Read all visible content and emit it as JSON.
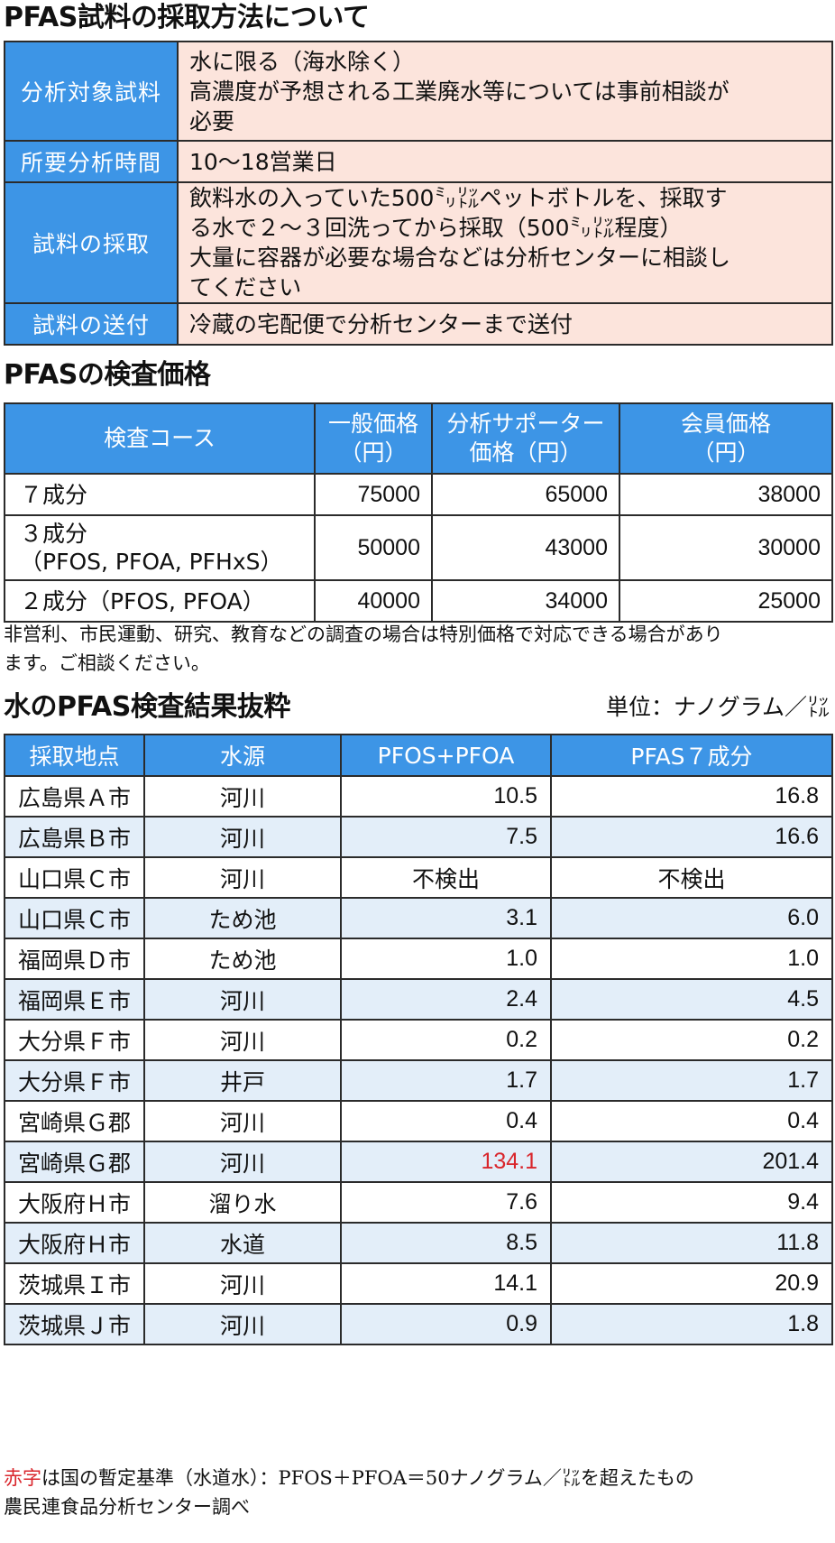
{
  "sampling": {
    "title": "PFAS試料の採取方法について",
    "rows": [
      {
        "label": "分析対象試料",
        "lines": [
          "水に限る（海水除く）",
          "高濃度が予想される工業廃水等については事前相談が",
          "必要"
        ]
      },
      {
        "label": "所要分析時間",
        "lines": [
          "10〜18営業日"
        ]
      },
      {
        "label": "試料の採取",
        "lines": [
          "飲料水の入っていた500㍉㍑ペットボトルを、採取す",
          "る水で２〜３回洗ってから採取（500㍉㍑程度）",
          "大量に容器が必要な場合などは分析センターに相談し",
          "てください"
        ]
      },
      {
        "label": "試料の送付",
        "lines": [
          "冷蔵の宅配便で分析センターまで送付"
        ]
      }
    ]
  },
  "pricing": {
    "title": "PFASの検査価格",
    "headers": [
      {
        "lines": [
          "検査コース"
        ]
      },
      {
        "lines": [
          "一般価格",
          "（円）"
        ]
      },
      {
        "lines": [
          "分析サポーター",
          "価格（円）"
        ]
      },
      {
        "lines": [
          "会員価格",
          "（円）"
        ]
      }
    ],
    "rows": [
      {
        "course": [
          "７成分"
        ],
        "general": "75000",
        "supporter": "65000",
        "member": "38000"
      },
      {
        "course": [
          "３成分",
          "（PFOS, PFOA, PFHxS）"
        ],
        "general": "50000",
        "supporter": "43000",
        "member": "30000"
      },
      {
        "course": [
          "２成分（PFOS, PFOA）"
        ],
        "general": "40000",
        "supporter": "34000",
        "member": "25000"
      }
    ],
    "note_lines": [
      "非営利、市民運動、研究、教育などの調査の場合は特別価格で対応できる場合があり",
      "ます。ご相談ください。"
    ]
  },
  "results": {
    "title": "水のPFAS検査結果抜粋",
    "unit": "単位：ナノグラム／㍑",
    "headers": [
      "採取地点",
      "水源",
      "PFOS+PFOA",
      "PFAS７成分"
    ],
    "rows": [
      {
        "site": "広島県Ａ市",
        "source": "河川",
        "pfos_pfoa": "10.5",
        "pfas7": "16.8",
        "exceeds": false,
        "not_detected": false
      },
      {
        "site": "広島県Ｂ市",
        "source": "河川",
        "pfos_pfoa": "7.5",
        "pfas7": "16.6",
        "exceeds": false,
        "not_detected": false
      },
      {
        "site": "山口県Ｃ市",
        "source": "河川",
        "pfos_pfoa": "不検出",
        "pfas7": "不検出",
        "exceeds": false,
        "not_detected": true
      },
      {
        "site": "山口県Ｃ市",
        "source": "ため池",
        "pfos_pfoa": "3.1",
        "pfas7": "6.0",
        "exceeds": false,
        "not_detected": false
      },
      {
        "site": "福岡県Ｄ市",
        "source": "ため池",
        "pfos_pfoa": "1.0",
        "pfas7": "1.0",
        "exceeds": false,
        "not_detected": false
      },
      {
        "site": "福岡県Ｅ市",
        "source": "河川",
        "pfos_pfoa": "2.4",
        "pfas7": "4.5",
        "exceeds": false,
        "not_detected": false
      },
      {
        "site": "大分県Ｆ市",
        "source": "河川",
        "pfos_pfoa": "0.2",
        "pfas7": "0.2",
        "exceeds": false,
        "not_detected": false
      },
      {
        "site": "大分県Ｆ市",
        "source": "井戸",
        "pfos_pfoa": "1.7",
        "pfas7": "1.7",
        "exceeds": false,
        "not_detected": false
      },
      {
        "site": "宮崎県Ｇ郡",
        "source": "河川",
        "pfos_pfoa": "0.4",
        "pfas7": "0.4",
        "exceeds": false,
        "not_detected": false
      },
      {
        "site": "宮崎県Ｇ郡",
        "source": "河川",
        "pfos_pfoa": "134.1",
        "pfas7": "201.4",
        "exceeds": true,
        "not_detected": false
      },
      {
        "site": "大阪府Ｈ市",
        "source": "溜り水",
        "pfos_pfoa": "7.6",
        "pfas7": "9.4",
        "exceeds": false,
        "not_detected": false
      },
      {
        "site": "大阪府Ｈ市",
        "source": "水道",
        "pfos_pfoa": "8.5",
        "pfas7": "11.8",
        "exceeds": false,
        "not_detected": false
      },
      {
        "site": "茨城県Ｉ市",
        "source": "河川",
        "pfos_pfoa": "14.1",
        "pfas7": "20.9",
        "exceeds": false,
        "not_detected": false
      },
      {
        "site": "茨城県Ｊ市",
        "source": "河川",
        "pfos_pfoa": "0.9",
        "pfas7": "1.8",
        "exceeds": false,
        "not_detected": false
      }
    ],
    "footnote": {
      "red_text": "赤字",
      "rest": "は国の暫定基準（水道水）：PFOS＋PFOA＝50ナノグラム／㍑を超えたもの",
      "source": "農民連食品分析センター調べ"
    }
  },
  "colors": {
    "header_blue": "#3d95e6",
    "info_value_bg": "#fce4dc",
    "stripe_bg": "#e3eef9",
    "exceed_red": "#d9262c"
  }
}
